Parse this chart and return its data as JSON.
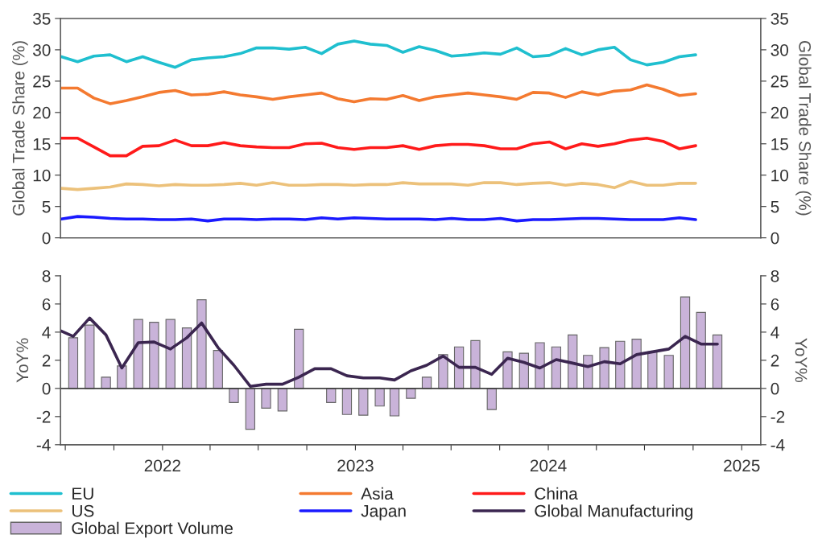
{
  "chart_data": [
    {
      "type": "line",
      "ylabel": "Global Trade Share (%)",
      "y2label": "Global Trade Share (%)",
      "categories": [
        null,
        null,
        null,
        null,
        null,
        null,
        null,
        null,
        null,
        null,
        null,
        null,
        null,
        null,
        null,
        null,
        null,
        null,
        null,
        null,
        null,
        null,
        null,
        null,
        null,
        null,
        null,
        null,
        null,
        null,
        null,
        null,
        null,
        null,
        null,
        null,
        null,
        null,
        null,
        null
      ],
      "ylim": [
        0,
        35
      ],
      "yticks": [
        0,
        5,
        10,
        15,
        20,
        25,
        30,
        35
      ],
      "y2lim": [
        0,
        35
      ],
      "y2ticks": [
        0,
        5,
        10,
        15,
        20,
        25,
        30,
        35
      ],
      "tick_labels": "y",
      "grid": false,
      "legend": "bottom",
      "marker": "none",
      "line_style": "solid",
      "series": [
        {
          "name": "EU",
          "color": "#1fbfcf",
          "values": [
            28.9,
            28.1,
            29.0,
            29.2,
            28.1,
            28.9,
            28.0,
            27.2,
            28.4,
            28.7,
            28.9,
            29.4,
            30.3,
            30.3,
            30.1,
            30.4,
            29.4,
            30.9,
            31.4,
            30.9,
            30.7,
            29.6,
            30.5,
            29.9,
            29.0,
            29.2,
            29.5,
            29.3,
            30.3,
            28.9,
            29.1,
            30.2,
            29.2,
            30.0,
            30.4,
            28.4,
            27.6,
            28.0,
            28.9,
            29.2
          ]
        },
        {
          "name": "Asia",
          "color": "#f47a30",
          "values": [
            23.9,
            23.9,
            22.3,
            21.4,
            21.9,
            22.5,
            23.2,
            23.5,
            22.8,
            22.9,
            23.3,
            22.8,
            22.5,
            22.1,
            22.5,
            22.8,
            23.1,
            22.2,
            21.7,
            22.2,
            22.1,
            22.7,
            21.9,
            22.5,
            22.8,
            23.1,
            22.8,
            22.5,
            22.1,
            23.2,
            23.1,
            22.4,
            23.3,
            22.8,
            23.4,
            23.6,
            24.4,
            23.7,
            22.7,
            23.0
          ]
        },
        {
          "name": "China",
          "color": "#ff1a1a",
          "values": [
            15.9,
            15.9,
            14.5,
            13.1,
            13.1,
            14.6,
            14.7,
            15.6,
            14.7,
            14.7,
            15.2,
            14.7,
            14.5,
            14.4,
            14.4,
            15.0,
            15.1,
            14.4,
            14.1,
            14.4,
            14.4,
            14.7,
            14.1,
            14.7,
            14.9,
            14.9,
            14.7,
            14.2,
            14.2,
            15.0,
            15.3,
            14.2,
            15.0,
            14.6,
            15.0,
            15.6,
            15.9,
            15.4,
            14.2,
            14.7
          ]
        },
        {
          "name": "US",
          "color": "#ecc17a",
          "values": [
            7.9,
            7.7,
            7.9,
            8.1,
            8.6,
            8.5,
            8.3,
            8.5,
            8.4,
            8.4,
            8.5,
            8.7,
            8.4,
            8.8,
            8.4,
            8.4,
            8.5,
            8.5,
            8.4,
            8.5,
            8.5,
            8.8,
            8.6,
            8.6,
            8.6,
            8.4,
            8.8,
            8.8,
            8.5,
            8.7,
            8.8,
            8.4,
            8.7,
            8.5,
            8.0,
            9.0,
            8.4,
            8.4,
            8.7,
            8.7
          ]
        },
        {
          "name": "Japan",
          "color": "#1a1aff",
          "values": [
            3.0,
            3.4,
            3.3,
            3.1,
            3.0,
            3.0,
            2.9,
            2.9,
            3.0,
            2.7,
            3.0,
            3.0,
            2.9,
            3.0,
            3.0,
            2.9,
            3.2,
            3.0,
            3.2,
            3.1,
            3.0,
            3.0,
            3.0,
            2.9,
            3.1,
            2.9,
            2.9,
            3.1,
            2.7,
            2.9,
            2.9,
            3.0,
            3.1,
            3.1,
            3.0,
            2.9,
            2.9,
            2.9,
            3.2,
            2.9
          ]
        }
      ]
    },
    {
      "type": "bar",
      "ylabel": "YoY%",
      "y2label": "YoY%",
      "x": [
        "2021-07-16",
        "2021-08-16",
        "2021-09-16",
        "2021-10-16",
        "2021-11-16",
        "2021-12-16",
        "2022-01-16",
        "2022-02-16",
        "2022-03-16",
        "2022-04-16",
        "2022-05-16",
        "2022-06-16",
        "2022-07-16",
        "2022-08-16",
        "2022-09-16",
        "2022-10-16",
        "2022-11-16",
        "2022-12-16",
        "2023-01-16",
        "2023-02-16",
        "2023-03-16",
        "2023-04-16",
        "2023-05-16",
        "2023-06-16",
        "2023-07-16",
        "2023-08-16",
        "2023-09-16",
        "2023-10-16",
        "2023-11-16",
        "2023-12-16",
        "2024-01-16",
        "2024-02-16",
        "2024-03-16",
        "2024-04-16",
        "2024-05-16",
        "2024-06-16",
        "2024-07-16",
        "2024-08-16",
        "2024-09-16",
        "2024-10-16",
        "2024-11-16"
      ],
      "xlim": [
        "2021-06-22",
        "2025-02-06"
      ],
      "xticks": [
        {
          "value": "2021-07-01",
          "label": null
        },
        {
          "value": "2021-10-01",
          "label": null
        },
        {
          "value": "2022-01-01",
          "label": "2022"
        },
        {
          "value": "2022-04-01",
          "label": null
        },
        {
          "value": "2022-07-01",
          "label": null
        },
        {
          "value": "2022-10-01",
          "label": null
        },
        {
          "value": "2023-01-01",
          "label": "2023"
        },
        {
          "value": "2023-04-01",
          "label": null
        },
        {
          "value": "2023-07-01",
          "label": null
        },
        {
          "value": "2023-10-01",
          "label": null
        },
        {
          "value": "2024-01-01",
          "label": "2024"
        },
        {
          "value": "2024-04-01",
          "label": null
        },
        {
          "value": "2024-07-01",
          "label": null
        },
        {
          "value": "2024-10-01",
          "label": null
        },
        {
          "value": "2025-01-01",
          "label": "2025"
        }
      ],
      "ylim": [
        -4,
        8
      ],
      "yticks": [
        -4,
        -2,
        0,
        2,
        4,
        6,
        8
      ],
      "y2lim": [
        -4,
        8
      ],
      "y2ticks": [
        -4,
        -2,
        0,
        2,
        4,
        6,
        8
      ],
      "grid": false,
      "legend": "bottom",
      "ref_lines": [
        {
          "axis": "y",
          "value": 0,
          "color": "#404040",
          "line_style": "solid"
        }
      ],
      "series": [
        {
          "name": "Global Manufacturing",
          "type": "line",
          "color": "#3b2650",
          "x": [
            "2021-06-22",
            "2021-07-16",
            "2021-08-16",
            "2021-09-16",
            "2021-10-16",
            "2021-11-16",
            "2021-12-16",
            "2022-01-16",
            "2022-02-16",
            "2022-03-16",
            "2022-04-16",
            "2022-05-16",
            "2022-06-16",
            "2022-07-16",
            "2022-08-16",
            "2022-09-16",
            "2022-10-16",
            "2022-11-16",
            "2022-12-16",
            "2023-01-16",
            "2023-02-16",
            "2023-03-16",
            "2023-04-16",
            "2023-05-16",
            "2023-06-16",
            "2023-07-16",
            "2023-08-16",
            "2023-09-16",
            "2023-10-16",
            "2023-11-16",
            "2023-12-16",
            "2024-01-16",
            "2024-02-16",
            "2024-03-16",
            "2024-04-16",
            "2024-05-16",
            "2024-06-16",
            "2024-07-16",
            "2024-08-16",
            "2024-09-16",
            "2024-10-16",
            "2024-11-16"
          ],
          "values": [
            4.1,
            3.7,
            5.0,
            3.8,
            1.45,
            3.25,
            3.3,
            2.8,
            3.6,
            4.65,
            2.9,
            1.65,
            0.15,
            0.3,
            0.3,
            0.8,
            1.4,
            1.4,
            0.9,
            0.75,
            0.75,
            0.6,
            1.25,
            1.65,
            2.3,
            1.5,
            1.5,
            1.0,
            2.15,
            1.85,
            1.45,
            2.05,
            1.8,
            1.55,
            1.9,
            1.75,
            2.4,
            2.6,
            2.8,
            3.7,
            3.15,
            3.15
          ]
        },
        {
          "name": "Global Export Volume",
          "type": "bar",
          "color": "#c9b3d9",
          "values": [
            3.6,
            4.5,
            0.8,
            1.6,
            4.9,
            4.7,
            4.9,
            4.3,
            6.3,
            2.7,
            -1.0,
            -2.9,
            -1.4,
            -1.6,
            4.2,
            null,
            -1.0,
            -1.85,
            -1.9,
            -1.25,
            -1.95,
            -0.7,
            0.8,
            2.4,
            2.95,
            3.4,
            -1.5,
            2.6,
            2.5,
            3.25,
            2.95,
            3.8,
            2.35,
            2.9,
            3.35,
            3.5,
            2.6,
            2.35,
            6.5,
            5.4,
            3.8
          ]
        }
      ]
    }
  ]
}
